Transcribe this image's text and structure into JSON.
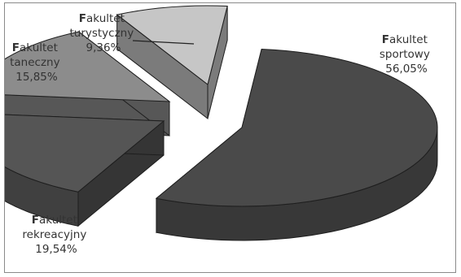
{
  "chart_data": {
    "type": "pie",
    "variant": "3d-exploded",
    "slices": [
      {
        "label_initial": "F",
        "label_line1_rest": "akultet",
        "label_line2": "sportowy",
        "percent_text": "56,05%",
        "value": 56.05,
        "color": "#4a4a4a"
      },
      {
        "label_initial": "F",
        "label_line1_rest": "akultet",
        "label_line2": "rekreacyjny",
        "percent_text": "19,54%",
        "value": 19.54,
        "color": "#555555"
      },
      {
        "label_initial": "F",
        "label_line1_rest": "akultet",
        "label_line2": "taneczny",
        "percent_text": "15,85%",
        "value": 15.85,
        "color": "#8c8c8c"
      },
      {
        "label_initial": "F",
        "label_line1_rest": "akultet",
        "label_line2": "turystyczny",
        "percent_text": "9,36%",
        "value": 9.36,
        "color": "#c6c6c6"
      }
    ],
    "legend": "none"
  }
}
